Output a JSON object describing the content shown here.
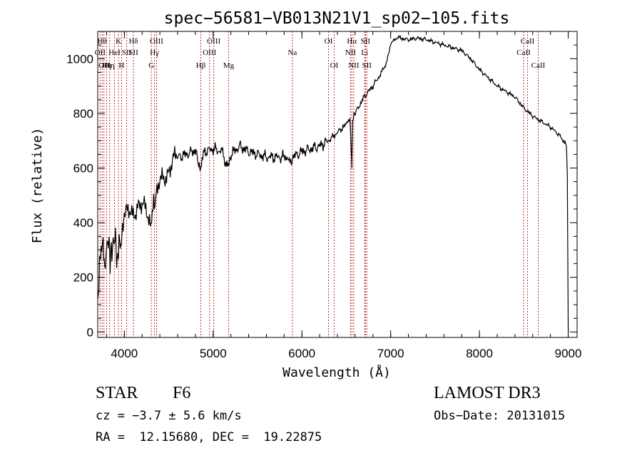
{
  "chart_data": {
    "type": "line",
    "title": "spec−56581−VB013N21V1_sp02−105.fits",
    "xlabel": "Wavelength (Å)",
    "ylabel": "Flux (relative)",
    "xlim": [
      3700,
      9100
    ],
    "ylim": [
      -20,
      1100
    ],
    "xticks": [
      4000,
      5000,
      6000,
      7000,
      8000,
      9000
    ],
    "yticks": [
      0,
      200,
      400,
      600,
      800,
      1000
    ],
    "series": [
      {
        "name": "flux",
        "x": [
          3700,
          3720,
          3740,
          3760,
          3780,
          3800,
          3820,
          3840,
          3860,
          3880,
          3900,
          3920,
          3940,
          3960,
          3980,
          4000,
          4050,
          4100,
          4150,
          4200,
          4250,
          4300,
          4330,
          4350,
          4400,
          4450,
          4500,
          4550,
          4600,
          4700,
          4800,
          4860,
          4900,
          5000,
          5100,
          5170,
          5200,
          5300,
          5400,
          5500,
          5600,
          5700,
          5800,
          5890,
          5900,
          6000,
          6100,
          6200,
          6300,
          6400,
          6500,
          6540,
          6560,
          6563,
          6570,
          6580,
          6600,
          6700,
          6800,
          6900,
          6950,
          7000,
          7050,
          7100,
          7200,
          7300,
          7400,
          7500,
          7600,
          7700,
          7800,
          7900,
          8000,
          8100,
          8200,
          8300,
          8400,
          8500,
          8600,
          8700,
          8800,
          8900,
          8950,
          8980,
          8990,
          9000
        ],
        "values": [
          80,
          250,
          300,
          330,
          220,
          310,
          340,
          270,
          300,
          330,
          350,
          240,
          340,
          310,
          380,
          420,
          430,
          440,
          470,
          450,
          440,
          400,
          460,
          480,
          540,
          570,
          600,
          620,
          640,
          650,
          665,
          590,
          660,
          670,
          660,
          600,
          650,
          680,
          660,
          650,
          640,
          640,
          640,
          600,
          640,
          660,
          670,
          680,
          700,
          730,
          760,
          780,
          640,
          600,
          770,
          790,
          800,
          860,
          900,
          950,
          980,
          1060,
          1070,
          1075,
          1070,
          1075,
          1070,
          1060,
          1050,
          1040,
          1030,
          1000,
          960,
          930,
          900,
          880,
          860,
          820,
          790,
          770,
          750,
          720,
          700,
          680,
          580,
          0
        ]
      }
    ],
    "lines": [
      {
        "x": 3750,
        "label": "Hθ",
        "tier": 1
      },
      {
        "x": 3727,
        "label": "OII",
        "tier": 2
      },
      {
        "x": 3770,
        "label": "OII",
        "tier": 3
      },
      {
        "x": 3800,
        "label": "Hη",
        "tier": 3
      },
      {
        "x": 3835,
        "label": "Hη",
        "tier": 3
      },
      {
        "x": 3889,
        "label": "HeI",
        "tier": 2
      },
      {
        "x": 3934,
        "label": "K",
        "tier": 1
      },
      {
        "x": 3968,
        "label": "H",
        "tier": 3
      },
      {
        "x": 4026,
        "label": "SII",
        "tier": 2
      },
      {
        "x": 4102,
        "label": "Hδ",
        "tier": 1
      },
      {
        "x": 4102,
        "label": "SII",
        "tier": 2
      },
      {
        "x": 4304,
        "label": "G",
        "tier": 3
      },
      {
        "x": 4340,
        "label": "Hγ",
        "tier": 2
      },
      {
        "x": 4363,
        "label": "OIII",
        "tier": 1
      },
      {
        "x": 4861,
        "label": "Hβ",
        "tier": 3
      },
      {
        "x": 4959,
        "label": "OIII",
        "tier": 2
      },
      {
        "x": 5007,
        "label": "OIII",
        "tier": 1
      },
      {
        "x": 5175,
        "label": "Mg",
        "tier": 3
      },
      {
        "x": 5893,
        "label": "Na",
        "tier": 2
      },
      {
        "x": 6300,
        "label": "OI",
        "tier": 1
      },
      {
        "x": 6364,
        "label": "OI",
        "tier": 3
      },
      {
        "x": 6548,
        "label": "NII",
        "tier": 2
      },
      {
        "x": 6563,
        "label": "Hα",
        "tier": 1
      },
      {
        "x": 6584,
        "label": "NII",
        "tier": 3
      },
      {
        "x": 6707,
        "label": "Li",
        "tier": 2
      },
      {
        "x": 6716,
        "label": "SII",
        "tier": 1
      },
      {
        "x": 6731,
        "label": "SII",
        "tier": 3
      },
      {
        "x": 8498,
        "label": "CaII",
        "tier": 2
      },
      {
        "x": 8542,
        "label": "CaII",
        "tier": 1
      },
      {
        "x": 8662,
        "label": "CaII",
        "tier": 3
      }
    ]
  },
  "info": {
    "object_class": "STAR",
    "subclass": "F6",
    "redshift": "cz = −3.7 ± 5.6 km/s",
    "coords": "RA =  12.15680, DEC =  19.22875",
    "survey": "LAMOST DR3",
    "obs_date": "Obs−Date: 20131015"
  }
}
